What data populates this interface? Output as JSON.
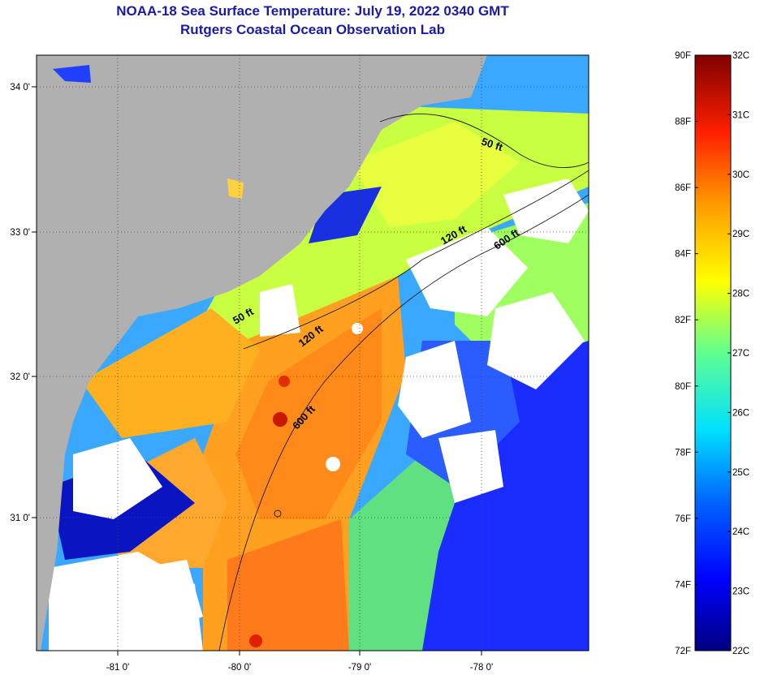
{
  "header": {
    "title": "NOAA-18 Sea Surface Temperature:  July 19, 2022 0340 GMT",
    "subtitle": "Rutgers Coastal Ocean Observation Lab"
  },
  "map": {
    "lon_ticks": [
      "-81 0'",
      "-80 0'",
      "-79 0'",
      "-78 0'"
    ],
    "lat_ticks": [
      "34 0'",
      "33 0'",
      "32 0'",
      "31 0'"
    ],
    "contours": [
      "50 ft",
      "50 ft",
      "120 ft",
      "120 ft",
      "600 ft",
      "600 ft"
    ]
  },
  "colorbar": {
    "fahrenheit": [
      "90F",
      "88F",
      "86F",
      "84F",
      "82F",
      "80F",
      "78F",
      "76F",
      "74F",
      "72F"
    ],
    "celsius": [
      "32C",
      "31C",
      "30C",
      "29C",
      "28C",
      "27C",
      "26C",
      "25C",
      "24C",
      "23C",
      "22C"
    ]
  },
  "colors": {
    "land": "#b0b0b0",
    "clouds": "#ffffff",
    "title": "#1a1aa8"
  }
}
